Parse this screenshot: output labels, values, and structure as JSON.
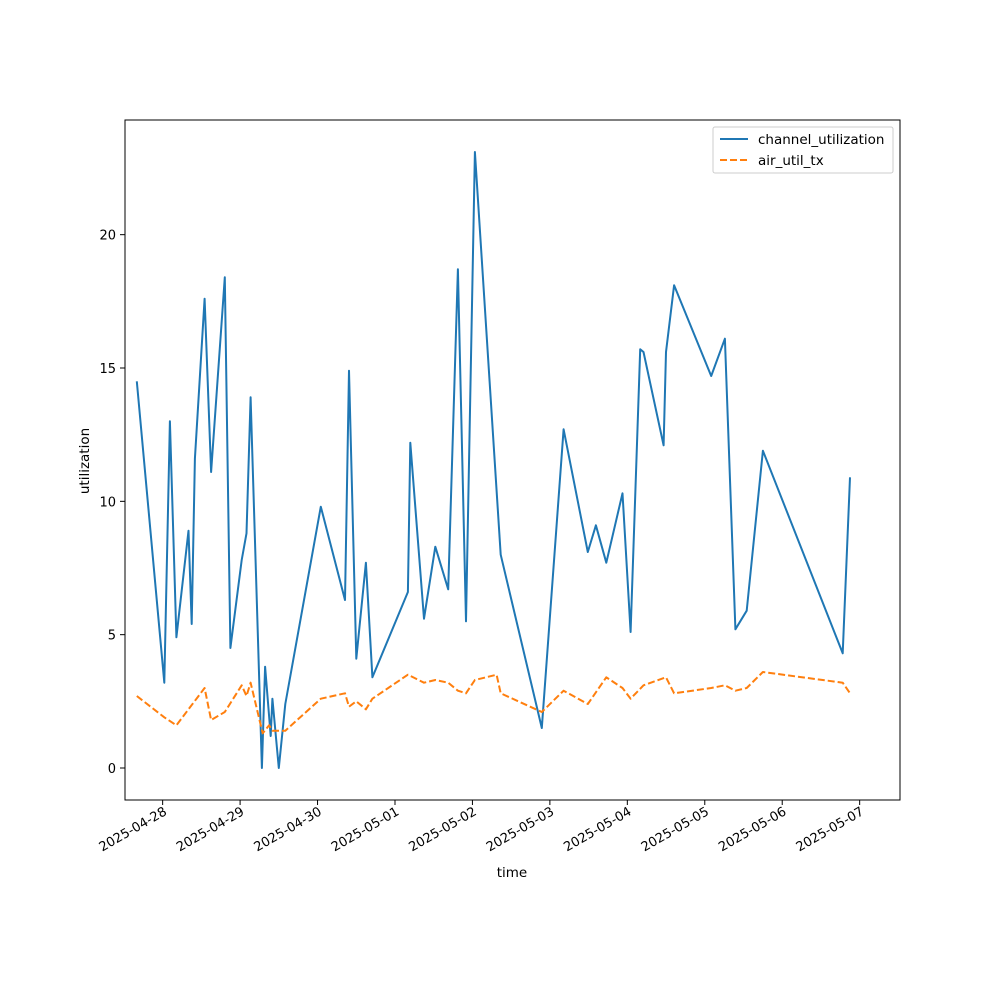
{
  "chart_data": {
    "type": "line",
    "xlabel": "time",
    "ylabel": "utilization",
    "x_axis_type": "datetime",
    "xlim": [
      "2025-04-27T12:20",
      "2025-05-07T12:30"
    ],
    "ylim": [
      -1.2,
      24.3
    ],
    "x_ticks": [
      "2025-04-28",
      "2025-04-29",
      "2025-04-30",
      "2025-05-01",
      "2025-05-02",
      "2025-05-03",
      "2025-05-04",
      "2025-05-05",
      "2025-05-06",
      "2025-05-07"
    ],
    "y_ticks": [
      0,
      5,
      10,
      15,
      20
    ],
    "grid": false,
    "legend_position": "top-right",
    "series": [
      {
        "name": "channel_utilization",
        "color": "#1f77b4",
        "style": "solid",
        "points": [
          [
            "2025-04-27T16:00",
            14.5
          ],
          [
            "2025-04-28T00:30",
            3.2
          ],
          [
            "2025-04-28T02:15",
            13.0
          ],
          [
            "2025-04-28T04:15",
            4.9
          ],
          [
            "2025-04-28T08:00",
            8.9
          ],
          [
            "2025-04-28T09:00",
            5.4
          ],
          [
            "2025-04-28T10:00",
            11.6
          ],
          [
            "2025-04-28T13:00",
            17.6
          ],
          [
            "2025-04-28T15:00",
            11.1
          ],
          [
            "2025-04-28T19:15",
            18.4
          ],
          [
            "2025-04-28T21:00",
            4.5
          ],
          [
            "2025-04-29T00:30",
            7.8
          ],
          [
            "2025-04-29T02:00",
            8.8
          ],
          [
            "2025-04-29T03:15",
            13.9
          ],
          [
            "2025-04-29T06:45",
            0.0
          ],
          [
            "2025-04-29T07:45",
            3.8
          ],
          [
            "2025-04-29T09:30",
            1.2
          ],
          [
            "2025-04-29T10:00",
            2.6
          ],
          [
            "2025-04-29T12:00",
            0.0
          ],
          [
            "2025-04-29T14:00",
            2.4
          ],
          [
            "2025-04-30T01:00",
            9.8
          ],
          [
            "2025-04-30T08:30",
            6.3
          ],
          [
            "2025-04-30T09:45",
            14.9
          ],
          [
            "2025-04-30T12:00",
            4.1
          ],
          [
            "2025-04-30T15:00",
            7.7
          ],
          [
            "2025-04-30T17:00",
            3.4
          ],
          [
            "2025-05-01T04:00",
            6.6
          ],
          [
            "2025-05-01T04:45",
            12.2
          ],
          [
            "2025-05-01T09:00",
            5.6
          ],
          [
            "2025-05-01T12:30",
            8.3
          ],
          [
            "2025-05-01T16:30",
            6.7
          ],
          [
            "2025-05-01T19:30",
            18.7
          ],
          [
            "2025-05-01T22:00",
            5.5
          ],
          [
            "2025-05-02T00:45",
            23.1
          ],
          [
            "2025-05-02T08:45",
            8.0
          ],
          [
            "2025-05-02T21:30",
            1.5
          ],
          [
            "2025-05-03T04:15",
            12.7
          ],
          [
            "2025-05-03T11:45",
            8.1
          ],
          [
            "2025-05-03T14:15",
            9.1
          ],
          [
            "2025-05-03T17:30",
            7.7
          ],
          [
            "2025-05-03T22:30",
            10.3
          ],
          [
            "2025-05-04T01:00",
            5.1
          ],
          [
            "2025-05-04T04:00",
            15.7
          ],
          [
            "2025-05-04T05:00",
            15.6
          ],
          [
            "2025-05-04T11:15",
            12.1
          ],
          [
            "2025-05-04T12:00",
            15.6
          ],
          [
            "2025-05-04T14:30",
            18.1
          ],
          [
            "2025-05-05T02:00",
            14.7
          ],
          [
            "2025-05-05T06:15",
            16.1
          ],
          [
            "2025-05-05T09:30",
            5.2
          ],
          [
            "2025-05-05T13:00",
            5.9
          ],
          [
            "2025-05-05T18:00",
            11.9
          ],
          [
            "2025-05-06T18:45",
            4.3
          ],
          [
            "2025-05-06T21:00",
            10.9
          ]
        ]
      },
      {
        "name": "air_util_tx",
        "color": "#ff7f0e",
        "style": "dashed",
        "points": [
          [
            "2025-04-27T16:00",
            2.7
          ],
          [
            "2025-04-28T00:30",
            1.9
          ],
          [
            "2025-04-28T04:15",
            1.6
          ],
          [
            "2025-04-28T13:00",
            3.0
          ],
          [
            "2025-04-28T15:00",
            1.8
          ],
          [
            "2025-04-28T19:15",
            2.1
          ],
          [
            "2025-04-29T00:30",
            3.1
          ],
          [
            "2025-04-29T02:00",
            2.7
          ],
          [
            "2025-04-29T03:15",
            3.2
          ],
          [
            "2025-04-29T07:00",
            1.3
          ],
          [
            "2025-04-29T09:00",
            1.6
          ],
          [
            "2025-04-29T10:00",
            1.4
          ],
          [
            "2025-04-29T14:00",
            1.4
          ],
          [
            "2025-04-30T01:00",
            2.6
          ],
          [
            "2025-04-30T08:30",
            2.8
          ],
          [
            "2025-04-30T09:45",
            2.3
          ],
          [
            "2025-04-30T12:00",
            2.5
          ],
          [
            "2025-04-30T15:00",
            2.2
          ],
          [
            "2025-04-30T17:00",
            2.6
          ],
          [
            "2025-05-01T04:00",
            3.5
          ],
          [
            "2025-05-01T09:00",
            3.2
          ],
          [
            "2025-05-01T12:30",
            3.3
          ],
          [
            "2025-05-01T16:30",
            3.2
          ],
          [
            "2025-05-01T19:30",
            2.9
          ],
          [
            "2025-05-01T22:00",
            2.8
          ],
          [
            "2025-05-02T00:45",
            3.3
          ],
          [
            "2025-05-02T07:30",
            3.5
          ],
          [
            "2025-05-02T08:45",
            2.8
          ],
          [
            "2025-05-02T21:30",
            2.1
          ],
          [
            "2025-05-03T04:15",
            2.9
          ],
          [
            "2025-05-03T11:45",
            2.4
          ],
          [
            "2025-05-03T17:30",
            3.4
          ],
          [
            "2025-05-03T22:30",
            3.0
          ],
          [
            "2025-05-04T01:00",
            2.6
          ],
          [
            "2025-05-04T05:00",
            3.1
          ],
          [
            "2025-05-04T12:00",
            3.4
          ],
          [
            "2025-05-04T14:30",
            2.8
          ],
          [
            "2025-05-05T02:00",
            3.0
          ],
          [
            "2025-05-05T06:15",
            3.1
          ],
          [
            "2025-05-05T09:30",
            2.9
          ],
          [
            "2025-05-05T13:00",
            3.0
          ],
          [
            "2025-05-05T18:00",
            3.6
          ],
          [
            "2025-05-06T18:45",
            3.2
          ],
          [
            "2025-05-06T21:00",
            2.8
          ]
        ]
      }
    ]
  }
}
